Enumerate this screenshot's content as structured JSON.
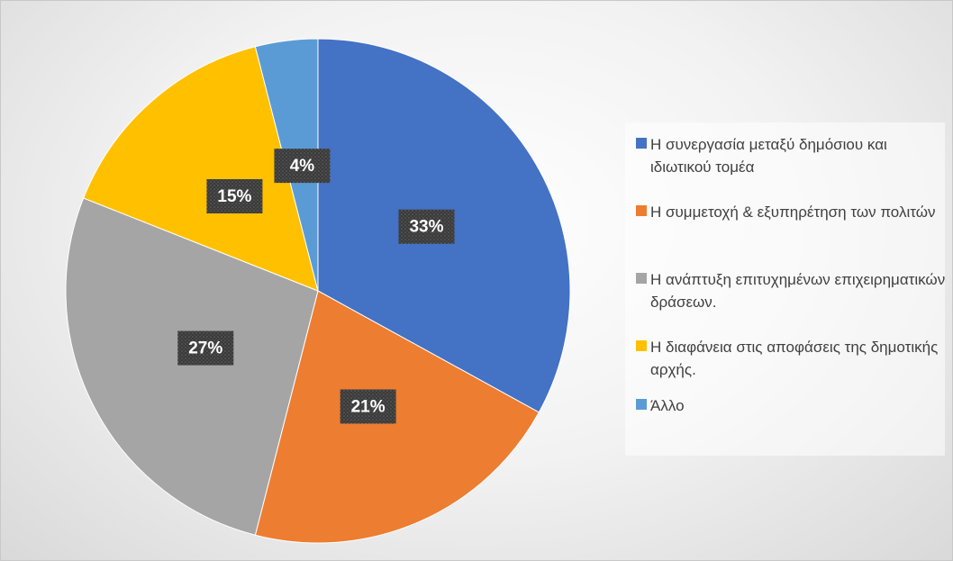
{
  "chart_data": {
    "type": "pie",
    "categories": [
      "Η συνεργασία μεταξύ δημόσιου και ιδιωτικού τομέα",
      "Η συμμετοχή & εξυπηρέτηση των πολιτών",
      "Η ανάπτυξη επιτυχημένων επιχειρηματικών δράσεων.",
      "Η διαφάνεια στις αποφάσεις της δημοτικής αρχής.",
      "Άλλο"
    ],
    "values": [
      33,
      21,
      27,
      15,
      4
    ],
    "value_labels": [
      "33%",
      "21%",
      "27%",
      "15%",
      "4%"
    ],
    "colors": [
      "#4472c4",
      "#ed7d31",
      "#a5a5a5",
      "#ffc000",
      "#5b9bd5"
    ],
    "legend": "right"
  }
}
